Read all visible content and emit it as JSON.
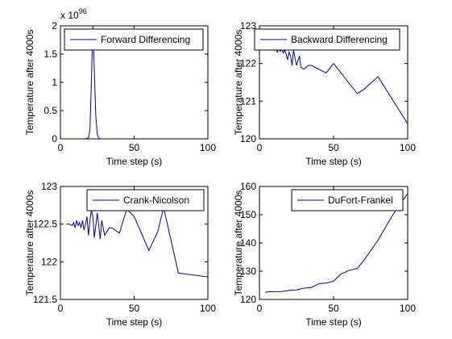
{
  "figure": {
    "background": "#ffffff",
    "line_color": "#00008b"
  },
  "chart_data": [
    {
      "type": "line",
      "legend": "Forward Differencing",
      "legend_position": "top-right",
      "xlabel": "Time step (s)",
      "ylabel": "Temperature after 4000s",
      "xlim": [
        0,
        100
      ],
      "ylim": [
        0,
        2
      ],
      "xticks": [
        0,
        50,
        100
      ],
      "yticks": [
        0,
        0.5,
        1,
        1.5,
        2
      ],
      "ytick_labels": [
        "0",
        "0.5",
        "1",
        "1.5",
        "2"
      ],
      "y_exponent_base": "x 10",
      "y_exponent_power": "96",
      "grid": false,
      "x": [
        1,
        5,
        10,
        15,
        18,
        19,
        20,
        21,
        22,
        23,
        24,
        25,
        26,
        27,
        30,
        35,
        40,
        45
      ],
      "y": [
        0,
        0,
        0,
        0,
        0.005,
        0.02,
        0.15,
        1.0,
        2.0,
        1.2,
        0.4,
        0.08,
        0.01,
        0,
        0,
        0,
        0,
        0
      ]
    },
    {
      "type": "line",
      "legend": "Backward Differencing",
      "legend_position": "top-right",
      "xlabel": "Time step (s)",
      "ylabel": "Temperature after 4000s",
      "xlim": [
        0,
        100
      ],
      "ylim": [
        120,
        123
      ],
      "xticks": [
        0,
        50,
        100
      ],
      "yticks": [
        120,
        121,
        122,
        123
      ],
      "ytick_labels": [
        "120",
        "121",
        "122",
        "123"
      ],
      "grid": false,
      "x": [
        5,
        7,
        9,
        10,
        11,
        12,
        13,
        14,
        15,
        16,
        17,
        18,
        19,
        20,
        21,
        22,
        23,
        25,
        27,
        28,
        30,
        33,
        35,
        40,
        45,
        50,
        60,
        66,
        70,
        80,
        100
      ],
      "y": [
        122.45,
        122.4,
        122.45,
        122.35,
        122.4,
        122.3,
        122.42,
        122.32,
        122.38,
        122.28,
        122.35,
        122.25,
        122.1,
        122.3,
        122.2,
        121.95,
        122.35,
        121.95,
        122.2,
        121.9,
        121.85,
        121.95,
        121.95,
        121.85,
        121.75,
        122.0,
        121.5,
        121.2,
        121.3,
        121.65,
        120.4
      ]
    },
    {
      "type": "line",
      "legend": "Crank-Nicolson",
      "legend_position": "top-right",
      "xlabel": "Time step (s)",
      "ylabel": "Temperature after 4000s",
      "xlim": [
        0,
        100
      ],
      "ylim": [
        121.5,
        123
      ],
      "xticks": [
        0,
        50,
        100
      ],
      "yticks": [
        121.5,
        122,
        122.5,
        123
      ],
      "ytick_labels": [
        "121.5",
        "122",
        "122.5",
        "123"
      ],
      "grid": false,
      "x": [
        4,
        6,
        8,
        9,
        10,
        11,
        12,
        13,
        14,
        15,
        16,
        17,
        18,
        19,
        20,
        21,
        22,
        23,
        25,
        27,
        28,
        30,
        33,
        35,
        40,
        45,
        50,
        60,
        66,
        70,
        80,
        100
      ],
      "y": [
        122.5,
        122.5,
        122.48,
        122.52,
        122.45,
        122.55,
        122.48,
        122.52,
        122.45,
        122.55,
        122.42,
        122.5,
        122.6,
        122.35,
        122.55,
        122.68,
        122.6,
        122.32,
        122.65,
        122.3,
        122.55,
        122.35,
        122.45,
        122.45,
        122.38,
        122.7,
        122.6,
        122.15,
        122.4,
        122.72,
        121.85,
        121.8
      ]
    },
    {
      "type": "line",
      "legend": "DuFort-Frankel",
      "legend_position": "top-right",
      "xlabel": "Time step (s)",
      "ylabel": "Temperature after 4000s",
      "xlim": [
        0,
        100
      ],
      "ylim": [
        120,
        160
      ],
      "xticks": [
        0,
        50,
        100
      ],
      "yticks": [
        120,
        130,
        140,
        150,
        160
      ],
      "ytick_labels": [
        "120",
        "130",
        "140",
        "150",
        "160"
      ],
      "grid": false,
      "x": [
        4,
        6,
        8,
        10,
        15,
        20,
        25,
        30,
        35,
        40,
        45,
        50,
        55,
        60,
        66,
        70,
        80,
        90,
        100
      ],
      "y": [
        122.5,
        122.7,
        122.7,
        122.8,
        122.8,
        123.2,
        123.4,
        124.0,
        124.2,
        125.6,
        125.8,
        126.5,
        129.0,
        130.2,
        131.0,
        133.5,
        141.0,
        150.0,
        157.5
      ]
    }
  ]
}
